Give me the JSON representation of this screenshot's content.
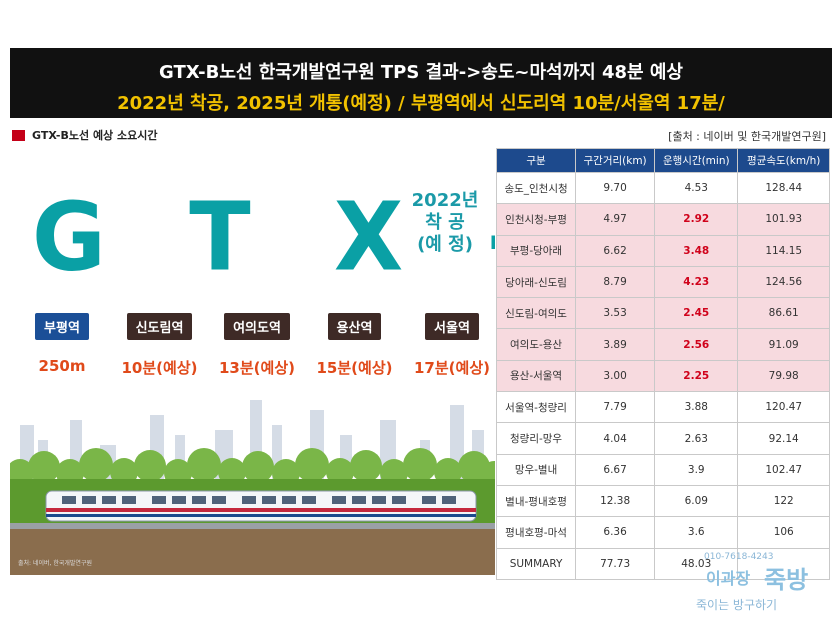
{
  "header": {
    "line1": "GTX-B노선 한국개발연구원 TPS 결과->송도~마석까지 48분 예상",
    "line2": "2022년 착공, 2025년 개통(예정) / 부평역에서 신도리역 10분/서울역 17분/"
  },
  "section_label": "GTX-B노선 예상 소요시간",
  "source": "[출처 : 네이버 및 한국개발연구원]",
  "graphic": {
    "big_text": "G T X - B",
    "start_note": [
      "2022년",
      "착 공",
      "(예 정)"
    ],
    "stations": [
      {
        "name": "부평역",
        "time": "250m"
      },
      {
        "name": "신도림역",
        "time": "10분(예상)"
      },
      {
        "name": "여의도역",
        "time": "13분(예상)"
      },
      {
        "name": "용산역",
        "time": "15분(예상)"
      },
      {
        "name": "서울역",
        "time": "17분(예상)"
      }
    ],
    "credit": "출처: 네이버, 한국개발연구원"
  },
  "table": {
    "headers": [
      "구분",
      "구간거리(km)",
      "운행시간(min)",
      "평균속도(km/h)"
    ],
    "rows": [
      {
        "name": "송도_인천시청",
        "dist": "9.70",
        "time": "4.53",
        "speed": "128.44",
        "highlight": false
      },
      {
        "name": "인천시청-부평",
        "dist": "4.97",
        "time": "2.92",
        "speed": "101.93",
        "highlight": true
      },
      {
        "name": "부평-당아래",
        "dist": "6.62",
        "time": "3.48",
        "speed": "114.15",
        "highlight": true
      },
      {
        "name": "당아래-신도림",
        "dist": "8.79",
        "time": "4.23",
        "speed": "124.56",
        "highlight": true
      },
      {
        "name": "신도림-여의도",
        "dist": "3.53",
        "time": "2.45",
        "speed": "86.61",
        "highlight": true
      },
      {
        "name": "여의도-용산",
        "dist": "3.89",
        "time": "2.56",
        "speed": "91.09",
        "highlight": true
      },
      {
        "name": "용산-서울역",
        "dist": "3.00",
        "time": "2.25",
        "speed": "79.98",
        "highlight": true
      },
      {
        "name": "서울역-청량리",
        "dist": "7.79",
        "time": "3.88",
        "speed": "120.47",
        "highlight": false
      },
      {
        "name": "청량리-망우",
        "dist": "4.04",
        "time": "2.63",
        "speed": "92.14",
        "highlight": false
      },
      {
        "name": "망우-별내",
        "dist": "6.67",
        "time": "3.9",
        "speed": "102.47",
        "highlight": false
      },
      {
        "name": "별내-평내호평",
        "dist": "12.38",
        "time": "6.09",
        "speed": "122",
        "highlight": false
      },
      {
        "name": "평내호평-마석",
        "dist": "6.36",
        "time": "3.6",
        "speed": "106",
        "highlight": false
      },
      {
        "name": "SUMMARY",
        "dist": "77.73",
        "time": "48.03",
        "speed": "",
        "highlight": false
      }
    ]
  },
  "watermark": {
    "phone": "010-7618-4243",
    "name1": "이과장",
    "name2": "죽방",
    "slogan": "죽이는 방구하기"
  },
  "colors": {
    "banner_bg": "#111111",
    "banner_accent": "#f2c200",
    "teal": "#0aa0a5",
    "table_header": "#1d4a8d",
    "highlight_row": "#f7dadf",
    "red_value": "#d0021b"
  }
}
